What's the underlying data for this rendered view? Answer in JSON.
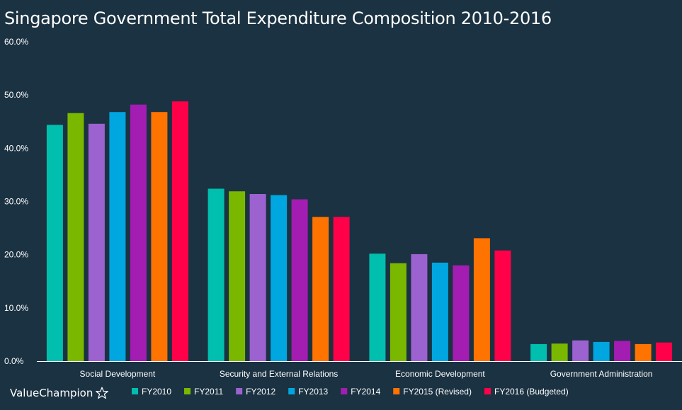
{
  "title": "Singapore Government Total Expenditure Composition 2010-2016",
  "brand": "ValueChampion",
  "chart_data": {
    "type": "bar",
    "title": "Singapore Government Total Expenditure Composition 2010-2016",
    "xlabel": "",
    "ylabel": "",
    "categories": [
      "Social Development",
      "Security and External Relations",
      "Economic Development",
      "Government Administration"
    ],
    "y_ticks": [
      0,
      10,
      20,
      30,
      40,
      50,
      60
    ],
    "y_tick_labels": [
      "0.0%",
      "10.0%",
      "20.0%",
      "30.0%",
      "40.0%",
      "50.0%",
      "60.0%"
    ],
    "ylim": [
      0,
      60
    ],
    "grid": false,
    "legend_position": "bottom",
    "series": [
      {
        "name": "FY2010",
        "color": "#00bfae",
        "values": [
          44.4,
          32.4,
          20.2,
          3.2
        ]
      },
      {
        "name": "FY2011",
        "color": "#7ab800",
        "values": [
          46.6,
          31.9,
          18.4,
          3.3
        ]
      },
      {
        "name": "FY2012",
        "color": "#9b62d0",
        "values": [
          44.6,
          31.4,
          20.1,
          3.9
        ]
      },
      {
        "name": "FY2013",
        "color": "#00a6e0",
        "values": [
          46.8,
          31.2,
          18.5,
          3.6
        ]
      },
      {
        "name": "FY2014",
        "color": "#a31db2",
        "values": [
          48.2,
          30.4,
          18.0,
          3.8
        ]
      },
      {
        "name": "FY2015 (Revised)",
        "color": "#ff7300",
        "values": [
          46.8,
          27.1,
          23.1,
          3.2
        ]
      },
      {
        "name": "FY2016 (Budgeted)",
        "color": "#ff0049",
        "values": [
          48.8,
          27.1,
          20.8,
          3.5
        ]
      }
    ]
  }
}
